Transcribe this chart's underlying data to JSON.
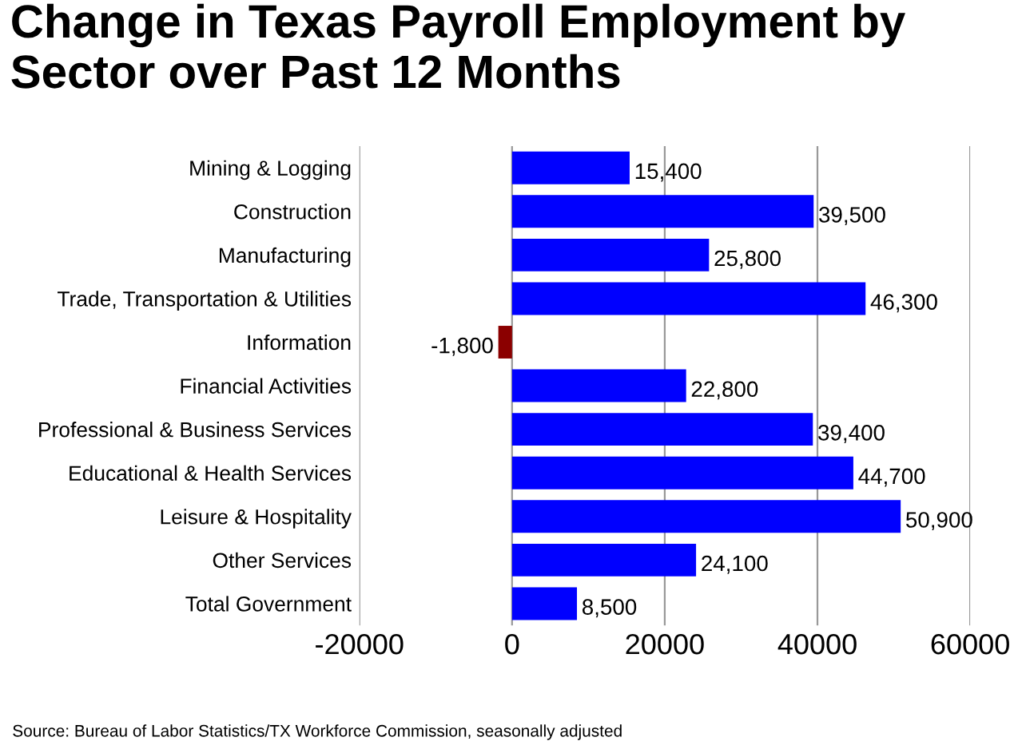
{
  "chart_data": {
    "type": "bar",
    "orientation": "horizontal",
    "title": "Change in Texas Payroll Employment by Sector over Past 12 Months",
    "categories": [
      "Mining & Logging",
      "Construction",
      "Manufacturing",
      "Trade, Transportation & Utilities",
      "Information",
      "Financial Activities",
      "Professional & Business Services",
      "Educational & Health Services",
      "Leisure & Hospitality",
      "Other Services",
      "Total Government"
    ],
    "values": [
      15400,
      39500,
      25800,
      46300,
      -1800,
      22800,
      39400,
      44700,
      50900,
      24100,
      8500
    ],
    "colors": [
      "#0000ff",
      "#0000ff",
      "#0000ff",
      "#0000ff",
      "#8b0000",
      "#0000ff",
      "#0000ff",
      "#0000ff",
      "#0000ff",
      "#0000ff",
      "#0000ff"
    ],
    "value_labels": [
      "15,400",
      "39,500",
      "25,800",
      "46,300",
      "-1,800",
      "22,800",
      "39,400",
      "44,700",
      "50,900",
      "24,100",
      "8,500"
    ],
    "xlim": [
      -20000,
      60000
    ],
    "xticks": [
      -20000,
      0,
      20000,
      40000,
      60000
    ],
    "grid": "x",
    "annotations": [
      "Source: Bureau of Labor Statistics/TX Workforce Commission, seasonally adjusted"
    ]
  }
}
